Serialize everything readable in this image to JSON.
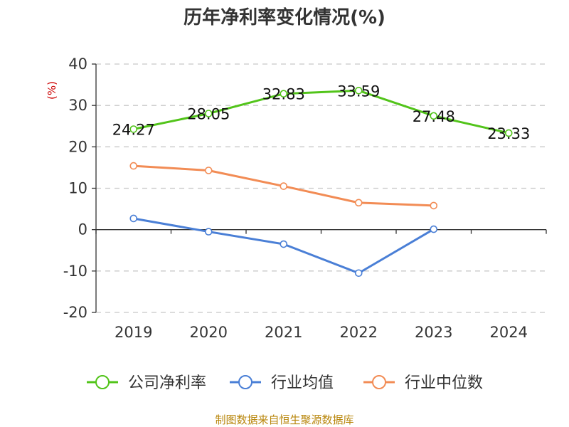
{
  "chart_data": {
    "type": "line",
    "title": "历年净利率变化情况(%)",
    "unit": "(%)",
    "categories": [
      "2019",
      "2020",
      "2021",
      "2022",
      "2023",
      "2024"
    ],
    "ylim": [
      -20,
      40
    ],
    "yticks": [
      40,
      30,
      20,
      10,
      0,
      -10,
      -20
    ],
    "grid": true,
    "legend_position": "bottom",
    "series": [
      {
        "name": "公司净利率",
        "color": "#52c41a",
        "values": [
          24.27,
          28.05,
          32.83,
          33.59,
          27.48,
          23.33
        ],
        "labels": [
          "24.27",
          "28.05",
          "32.83",
          "33.59",
          "27.48",
          "23.33"
        ]
      },
      {
        "name": "行业均值",
        "color": "#4a7fd6",
        "values": [
          2.7,
          -0.5,
          -3.5,
          -10.5,
          0.1,
          null
        ]
      },
      {
        "name": "行业中位数",
        "color": "#f28c55",
        "values": [
          15.4,
          14.3,
          10.5,
          6.5,
          5.8,
          null
        ]
      }
    ]
  },
  "source": "制图数据来自恒生聚源数据库"
}
